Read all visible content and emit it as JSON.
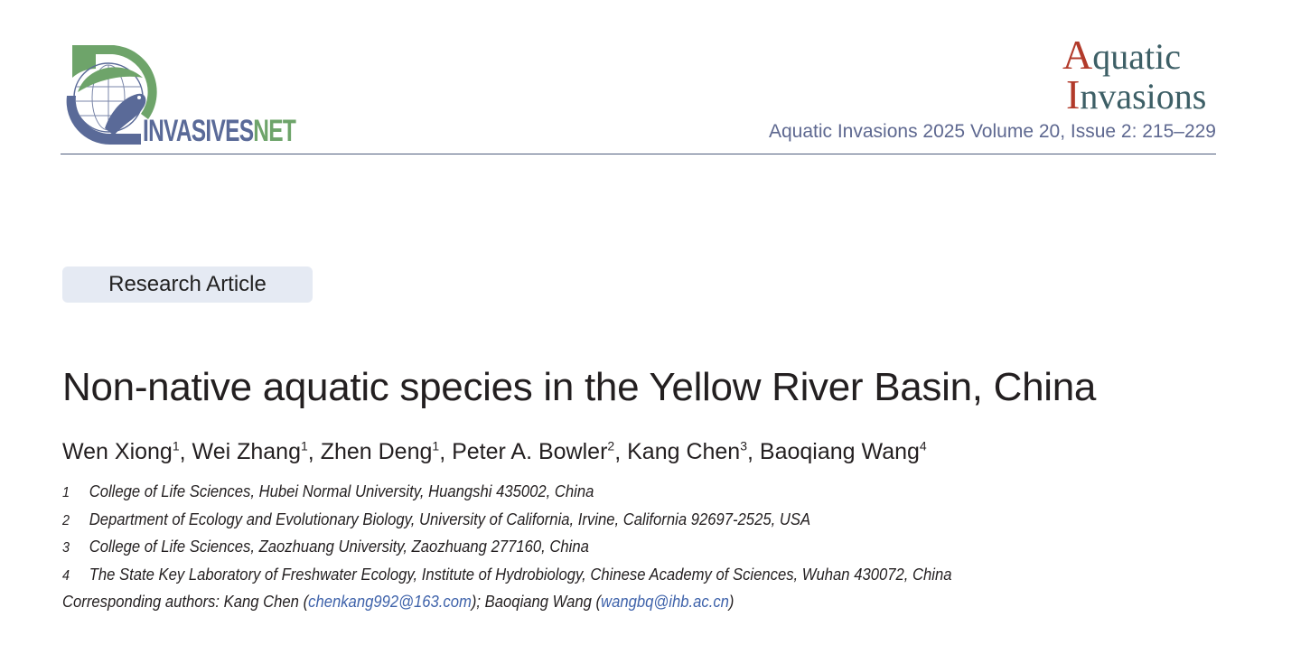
{
  "header": {
    "publisher_logo_text": "INVASIVESNET",
    "journal_logo": {
      "line1": "Aquatic",
      "line2": "Invasions"
    },
    "citation": "Aquatic Invasions 2025 Volume 20, Issue 2: 215–229",
    "colors": {
      "logo_green": "#6ea46a",
      "logo_blue": "#5a6a98",
      "journal_red": "#b23a2a",
      "journal_teal": "#3d5f66",
      "citation": "#5e6890"
    }
  },
  "article": {
    "type_label": "Research Article",
    "title": "Non-native aquatic species in the Yellow River Basin, China",
    "authors": [
      {
        "name": "Wen Xiong",
        "aff": "1"
      },
      {
        "name": "Wei Zhang",
        "aff": "1"
      },
      {
        "name": "Zhen Deng",
        "aff": "1"
      },
      {
        "name": "Peter A. Bowler",
        "aff": "2"
      },
      {
        "name": "Kang Chen",
        "aff": "3"
      },
      {
        "name": "Baoqiang Wang",
        "aff": "4"
      }
    ],
    "affiliations": [
      {
        "num": "1",
        "text": "College of Life Sciences, Hubei Normal University, Huangshi 435002, China"
      },
      {
        "num": "2",
        "text": "Department of Ecology and Evolutionary Biology, University of California, Irvine, California 92697-2525, USA"
      },
      {
        "num": "3",
        "text": "College of Life Sciences, Zaozhuang University, Zaozhuang 277160, China"
      },
      {
        "num": "4",
        "text": "The State Key Laboratory of Freshwater Ecology, Institute of Hydrobiology, Chinese Academy of Sciences, Wuhan 430072, China"
      }
    ],
    "corresponding": {
      "prefix": "Corresponding authors: Kang Chen (",
      "email1": "chenkang992@163.com",
      "middle": "); Baoqiang Wang (",
      "email2": "wangbq@ihb.ac.cn",
      "suffix": ")"
    }
  }
}
